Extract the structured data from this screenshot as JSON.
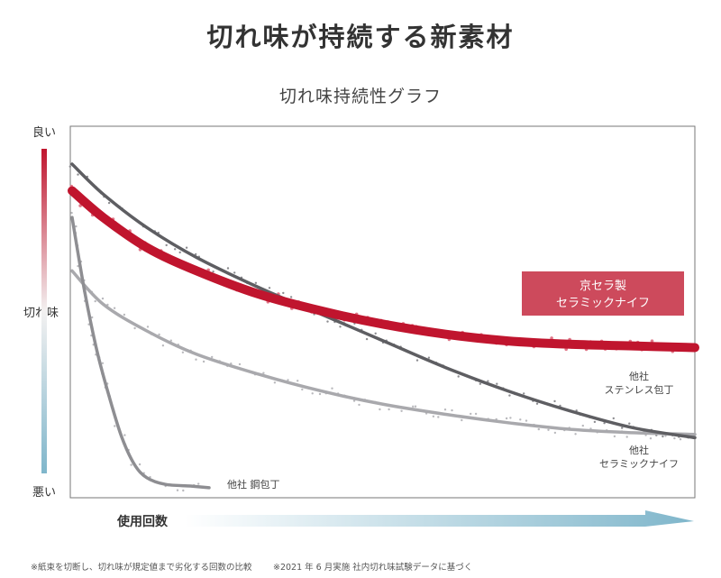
{
  "headline": "切れ味が持続する新素材",
  "chart_data": {
    "type": "line",
    "title": "切れ味持続性グラフ",
    "ylabel": "切れ味",
    "y_top_label": "良い",
    "y_bottom_label": "悪い",
    "xlabel": "使用回数",
    "grid": false,
    "series": [
      {
        "name": "京セラ製 セラミックナイフ",
        "label_lines": [
          "京セラ製",
          "セラミックナイフ"
        ],
        "color": "#c0152e",
        "points": [
          [
            0,
            92
          ],
          [
            5,
            84
          ],
          [
            12,
            75
          ],
          [
            20,
            68
          ],
          [
            30,
            61
          ],
          [
            40,
            56
          ],
          [
            50,
            52
          ],
          [
            60,
            49
          ],
          [
            70,
            47
          ],
          [
            80,
            46
          ],
          [
            90,
            45.5
          ],
          [
            100,
            45
          ]
        ]
      },
      {
        "name": "他社 ステンレス包丁",
        "label_lines": [
          "他社",
          "ステンレス包丁"
        ],
        "color": "#5e5e62",
        "points": [
          [
            0,
            100
          ],
          [
            5,
            91
          ],
          [
            12,
            81
          ],
          [
            20,
            72
          ],
          [
            30,
            63
          ],
          [
            40,
            55
          ],
          [
            50,
            47
          ],
          [
            60,
            39
          ],
          [
            70,
            32
          ],
          [
            80,
            26
          ],
          [
            90,
            21
          ],
          [
            100,
            18
          ]
        ]
      },
      {
        "name": "他社 セラミックナイフ",
        "label_lines": [
          "他社",
          "セラミックナイフ"
        ],
        "color": "#a9a9ad",
        "points": [
          [
            0,
            68
          ],
          [
            5,
            58
          ],
          [
            12,
            50
          ],
          [
            20,
            43
          ],
          [
            30,
            37
          ],
          [
            40,
            32
          ],
          [
            50,
            28
          ],
          [
            60,
            25
          ],
          [
            70,
            22.5
          ],
          [
            80,
            20.5
          ],
          [
            90,
            19.5
          ],
          [
            100,
            19
          ]
        ]
      },
      {
        "name": "他社 鋼包丁",
        "label_lines": [
          "他社 鋼包丁"
        ],
        "color": "#8e8e92",
        "points": [
          [
            0,
            84
          ],
          [
            2,
            62
          ],
          [
            4,
            44
          ],
          [
            6,
            30
          ],
          [
            8,
            18
          ],
          [
            10,
            10
          ],
          [
            12,
            6
          ],
          [
            15,
            4
          ],
          [
            19,
            3.5
          ],
          [
            22,
            3
          ]
        ]
      }
    ]
  },
  "footnotes": [
    "※紙束を切断し、切れ味が規定値まで劣化する回数の比較",
    "※2021 年 6 月実施 社内切れ味試験データに基づく"
  ]
}
